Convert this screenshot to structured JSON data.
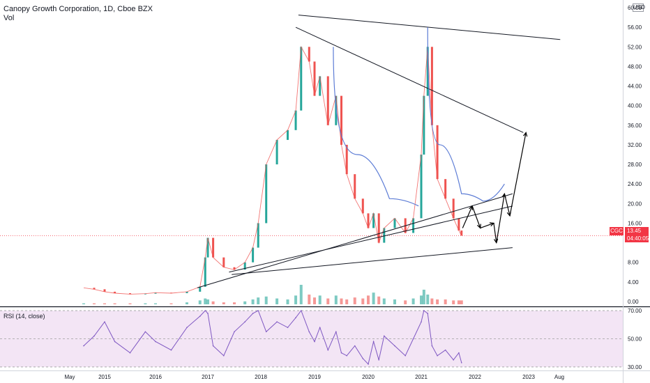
{
  "header": {
    "title": "Canopy Growth Corporation, 1D, Cboe BZX",
    "volume_label": "Vol",
    "currency": "USD"
  },
  "price_badge": {
    "ticker": "CGC",
    "price": "13.45",
    "countdown": "04:40:05"
  },
  "colors": {
    "up": "#26a69a",
    "down": "#ef5350",
    "rsi_line": "#7e57c2",
    "rsi_band": "#f3e5f5",
    "arc": "#5b7bd5",
    "price_line": "#f23645"
  },
  "chart_data": [
    {
      "type": "line",
      "title": "Canopy Growth Corporation, 1D, Cboe BZX",
      "x_labels": [
        "May",
        "2015",
        "2016",
        "2017",
        "2018",
        "2019",
        "2020",
        "2021",
        "2022",
        "2023",
        "Aug"
      ],
      "y_ticks": [
        "60.00",
        "56.00",
        "52.00",
        "48.00",
        "44.00",
        "40.00",
        "36.00",
        "32.00",
        "28.00",
        "24.00",
        "20.00",
        "16.00",
        "8.00",
        "4.00",
        "0.00"
      ],
      "ylim": [
        -1,
        61
      ],
      "series": [
        {
          "x": [
            2014.6,
            2014.8,
            2015.0,
            2015.2,
            2015.5,
            2015.8,
            2016.0,
            2016.3,
            2016.6,
            2016.85,
            2016.95,
            2017.0,
            2017.1,
            2017.3,
            2017.5,
            2017.7,
            2017.85,
            2017.95,
            2018.1,
            2018.3,
            2018.5,
            2018.65,
            2018.75,
            2018.9,
            2019.0,
            2019.1,
            2019.25,
            2019.4,
            2019.5,
            2019.6,
            2019.75,
            2019.9,
            2020.0,
            2020.1,
            2020.2,
            2020.3,
            2020.5,
            2020.7,
            2020.85,
            2021.0,
            2021.05,
            2021.12,
            2021.2,
            2021.3,
            2021.45,
            2021.6,
            2021.7,
            2021.75
          ],
          "values": [
            2.8,
            2.5,
            2.0,
            1.7,
            1.5,
            1.6,
            1.8,
            1.7,
            2.0,
            3.0,
            9.0,
            13.0,
            9.0,
            7.0,
            6.5,
            8.0,
            11.0,
            16.0,
            28.0,
            33.0,
            35.0,
            39.0,
            52.0,
            49.0,
            42.0,
            46.0,
            36.0,
            42.0,
            32.0,
            26.0,
            21.0,
            18.0,
            15.0,
            18.0,
            12.0,
            15.0,
            17.0,
            14.0,
            17.0,
            30.0,
            42.0,
            52.0,
            36.0,
            25.0,
            21.0,
            17.0,
            14.5,
            13.45
          ]
        }
      ],
      "annotations": {
        "trendlines": [
          {
            "from": [
              2018.7,
              58.5
            ],
            "to": [
              2023.6,
              53.5
            ]
          },
          {
            "from": [
              2018.65,
              56.0
            ],
            "to": [
              2022.9,
              34.5
            ]
          },
          {
            "from": [
              2017.45,
              5.5
            ],
            "to": [
              2022.7,
              11.0
            ]
          },
          {
            "from": [
              2016.8,
              2.8
            ],
            "to": [
              2022.7,
              22.0
            ]
          },
          {
            "from": [
              2017.4,
              6.0
            ],
            "to": [
              2022.7,
              19.5
            ]
          }
        ],
        "arcs": [
          [
            [
              2019.35,
              52.0
            ],
            [
              2019.8,
              30.0
            ],
            [
              2020.4,
              21.0
            ],
            [
              2020.95,
              19.5
            ]
          ],
          [
            [
              2021.12,
              56.0
            ],
            [
              2021.35,
              32.0
            ],
            [
              2021.75,
              22.0
            ],
            [
              2022.15,
              20.5
            ],
            [
              2022.55,
              24.0
            ]
          ]
        ],
        "arrow_path": [
          [
            2021.77,
            15.0
          ],
          [
            2021.95,
            19.5
          ],
          [
            2022.1,
            15.0
          ],
          [
            2022.35,
            16.0
          ],
          [
            2022.4,
            12.0
          ],
          [
            2022.55,
            22.0
          ],
          [
            2022.65,
            17.5
          ],
          [
            2022.95,
            34.5
          ]
        ]
      }
    },
    {
      "type": "line",
      "title": "RSI (14, close)",
      "y_ticks": [
        "70.00",
        "50.00",
        "30.00"
      ],
      "ylim": [
        28,
        72
      ],
      "series": [
        {
          "x": [
            2014.6,
            2014.8,
            2015.0,
            2015.2,
            2015.5,
            2015.8,
            2016.0,
            2016.3,
            2016.6,
            2016.85,
            2016.95,
            2017.0,
            2017.1,
            2017.3,
            2017.5,
            2017.7,
            2017.85,
            2017.95,
            2018.1,
            2018.3,
            2018.5,
            2018.65,
            2018.75,
            2018.9,
            2019.0,
            2019.1,
            2019.25,
            2019.4,
            2019.5,
            2019.6,
            2019.75,
            2019.9,
            2020.0,
            2020.1,
            2020.2,
            2020.3,
            2020.5,
            2020.7,
            2020.85,
            2021.0,
            2021.05,
            2021.12,
            2021.2,
            2021.3,
            2021.45,
            2021.6,
            2021.7,
            2021.75
          ],
          "values": [
            45,
            52,
            62,
            48,
            40,
            55,
            48,
            42,
            58,
            66,
            70,
            68,
            45,
            38,
            55,
            62,
            68,
            70,
            55,
            62,
            58,
            65,
            70,
            55,
            48,
            58,
            42,
            55,
            40,
            38,
            45,
            36,
            32,
            48,
            35,
            52,
            45,
            38,
            50,
            62,
            70,
            68,
            45,
            38,
            42,
            35,
            40,
            33
          ]
        }
      ]
    }
  ]
}
